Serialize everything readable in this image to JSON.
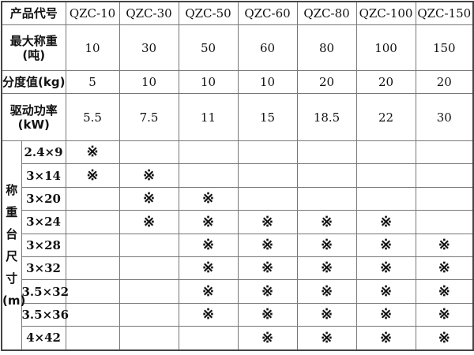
{
  "header": {
    "label": "产品代号",
    "models": [
      "QZC-10",
      "QZC-30",
      "QZC-50",
      "QZC-60",
      "QZC-80",
      "QZC-100",
      "QZC-150"
    ]
  },
  "max_weight": {
    "label_line1": "最大称重",
    "label_line2": "(吨)",
    "values": [
      "10",
      "30",
      "50",
      "60",
      "80",
      "100",
      "150"
    ]
  },
  "division": {
    "label": "分度值(kg)",
    "values": [
      "5",
      "10",
      "10",
      "10",
      "20",
      "20",
      "20"
    ]
  },
  "power": {
    "label_line1": "驱动功率",
    "label_line2": "(kW)",
    "values": [
      "5.5",
      "7.5",
      "11",
      "15",
      "18.5",
      "22",
      "30"
    ]
  },
  "platform": {
    "label_chars": [
      "称",
      "重",
      "台",
      "尺",
      "寸",
      "(m)"
    ],
    "mark_symbol": "※",
    "rows": [
      {
        "size": "2.4×9",
        "marks": [
          "※",
          "",
          "",
          "",
          "",
          "",
          ""
        ]
      },
      {
        "size": "3×14",
        "marks": [
          "※",
          "※",
          "",
          "",
          "",
          "",
          ""
        ]
      },
      {
        "size": "3×20",
        "marks": [
          "",
          "※",
          "※",
          "",
          "",
          "",
          ""
        ]
      },
      {
        "size": "3×24",
        "marks": [
          "",
          "※",
          "※",
          "※",
          "※",
          "※",
          ""
        ]
      },
      {
        "size": "3×28",
        "marks": [
          "",
          "",
          "※",
          "※",
          "※",
          "※",
          "※"
        ]
      },
      {
        "size": "3×32",
        "marks": [
          "",
          "",
          "※",
          "※",
          "※",
          "※",
          "※"
        ]
      },
      {
        "size": "3.5×32",
        "marks": [
          "",
          "",
          "※",
          "※",
          "※",
          "※",
          "※"
        ]
      },
      {
        "size": "3.5×36",
        "marks": [
          "",
          "",
          "※",
          "※",
          "※",
          "※",
          "※"
        ]
      },
      {
        "size": "4×42",
        "marks": [
          "",
          "",
          "",
          "※",
          "※",
          "※",
          "※"
        ]
      }
    ]
  }
}
